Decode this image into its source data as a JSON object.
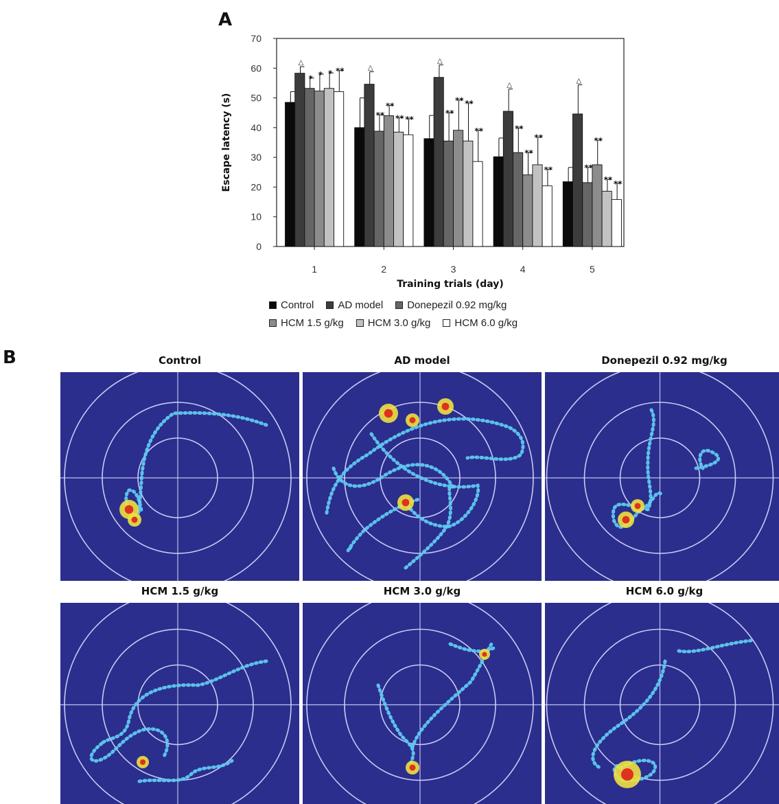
{
  "panel_a_label": "A",
  "panel_b_label": "B",
  "chart_data": {
    "type": "bar",
    "xlabel": "Training trials (day)",
    "ylabel": "Escape latency (s)",
    "ylim": [
      0,
      70
    ],
    "yticks": [
      0,
      10,
      20,
      30,
      40,
      50,
      60,
      70
    ],
    "categories": [
      "1",
      "2",
      "3",
      "4",
      "5"
    ],
    "legend_placement": "bottom",
    "series": [
      {
        "name": "Control",
        "color": "#0a0a0a",
        "values": [
          48.5,
          40,
          36.3,
          30.2,
          21.8
        ],
        "errors": [
          3.6,
          10,
          7.8,
          6.3,
          4.8
        ],
        "marks": [
          "",
          "",
          "",
          "",
          ""
        ]
      },
      {
        "name": "AD model",
        "color": "#3c3c3c",
        "values": [
          58.3,
          54.6,
          56.9,
          45.5,
          44.6
        ],
        "errors": [
          2.2,
          4.2,
          4.2,
          7.5,
          9.8
        ],
        "marks": [
          "△",
          "△",
          "△",
          "△",
          "△"
        ]
      },
      {
        "name": "Donepezil 0.92 mg/kg",
        "color": "#666666",
        "values": [
          53.2,
          38.8,
          35.5,
          31.6,
          21.5
        ],
        "errors": [
          3.5,
          5.5,
          9.5,
          8.3,
          5.2
        ],
        "marks": [
          "*",
          "**",
          "**",
          "**",
          "**"
        ]
      },
      {
        "name": "HCM 1.5 g/kg",
        "color": "#8c8c8c",
        "values": [
          52.3,
          44,
          39.1,
          24.1,
          27.5
        ],
        "errors": [
          5.7,
          3.5,
          10.2,
          7.5,
          8.3
        ],
        "marks": [
          "*",
          "**",
          "**",
          "**",
          "**"
        ]
      },
      {
        "name": "HCM 3.0 g/kg",
        "color": "#c2c2c2",
        "values": [
          53.2,
          38.5,
          35.5,
          27.5,
          18.6
        ],
        "errors": [
          5.2,
          4.8,
          12.8,
          9.3,
          4
        ],
        "marks": [
          "*",
          "**",
          "**",
          "**",
          "**"
        ]
      },
      {
        "name": "HCM 6.0 g/kg",
        "color": "#ffffff",
        "values": [
          52.1,
          37.6,
          28.6,
          20.4,
          15.8
        ],
        "errors": [
          7.1,
          5.4,
          10.5,
          5.6,
          5.5
        ],
        "marks": [
          "**",
          "**",
          "**",
          "**",
          "**"
        ]
      }
    ]
  },
  "legend_rows": [
    [
      {
        "label": "Control",
        "color": "#0a0a0a"
      },
      {
        "label": "AD model",
        "color": "#3c3c3c"
      },
      {
        "label": "Donepezil 0.92 mg/kg",
        "color": "#666666"
      }
    ],
    [
      {
        "label": "HCM 1.5 g/kg",
        "color": "#8c8c8c"
      },
      {
        "label": "HCM 3.0 g/kg",
        "color": "#c2c2c2"
      },
      {
        "label": "HCM 6.0 g/kg",
        "color": "#ffffff"
      }
    ]
  ],
  "track_panels": [
    {
      "title": "Control"
    },
    {
      "title": "AD model"
    },
    {
      "title": "Donepezil 0.92 mg/kg"
    },
    {
      "title": "HCM 1.5 g/kg"
    },
    {
      "title": "HCM 3.0 g/kg"
    },
    {
      "title": "HCM 6.0 g/kg"
    }
  ],
  "colors": {
    "pool_bg": "#2b2e8c",
    "pool_lines": "#d8dcff",
    "track": "#5fc8f0",
    "hot_mid": "#f0e040",
    "hot_core": "#e02018"
  }
}
